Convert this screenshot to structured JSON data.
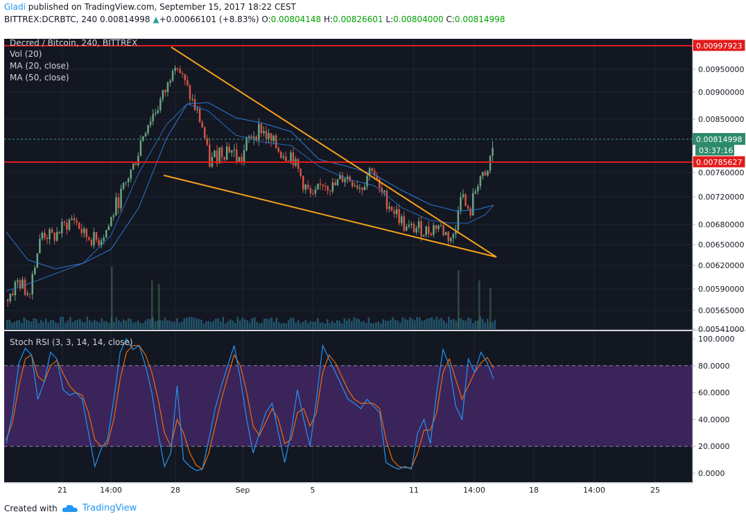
{
  "header": {
    "author": "Gladi",
    "published_text": "published on TradingView.com, September 15, 2017 18:22 CEST",
    "symbol_line": "BITTREX:DCRBTC, 240",
    "last_price": "0.00814998",
    "change": "+0.00066101 (+8.83%)",
    "o_label": "O:",
    "o": "0.00804148",
    "h_label": "H:",
    "h": "0.00826601",
    "l_label": "L:",
    "l": "0.00804000",
    "c_label": "C:",
    "c": "0.00814998"
  },
  "legend": {
    "title": "Decred / Bitcoin, 240, BITTREX",
    "vol": "Vol (20)",
    "ma20": "MA (20, close)",
    "ma50": "MA (50, close)",
    "stoch": "Stoch RSI (3, 3, 14, 14, close)"
  },
  "footer": {
    "created_with": "Created with",
    "brand": "TradingView"
  },
  "colors": {
    "background": "#131722",
    "up": "#6ba583",
    "down": "#d75442",
    "resistance": "#e31b1b",
    "trendline": "#f7a21b",
    "ma": "#2b7bd6",
    "stoch_k": "#2196f3",
    "stoch_d": "#ef6c00",
    "stoch_band": "#4a2a6e",
    "last_price_line": "#3aa37a"
  },
  "chart_data": {
    "type": "candlestick",
    "price_axis": {
      "ticks": [
        "0.00950000",
        "0.00900000",
        "0.00850000",
        "0.00760000",
        "0.00720000",
        "0.00680000",
        "0.00650000",
        "0.00620000",
        "0.00590000",
        "0.00565000",
        "0.00541000"
      ],
      "labels": [
        {
          "text": "0.00997923",
          "value": 0.00997923,
          "kind": "resistance"
        },
        {
          "text": "0.00814998",
          "value": 0.00814998,
          "kind": "last"
        },
        {
          "text": "03:37:16",
          "value": 0.00798,
          "kind": "timer"
        },
        {
          "text": "0.00785627",
          "value": 0.00785627,
          "kind": "resistance"
        }
      ],
      "partial_tick": "0."
    },
    "time_axis": [
      "21",
      "14:00",
      "28",
      "Sep",
      "5",
      "11",
      "14:00",
      "18",
      "14:00",
      "25"
    ],
    "horizontal_lines": [
      0.00997923,
      0.00785627
    ],
    "trendlines": [
      {
        "from": [
          "Aug 27",
          0.00993
        ],
        "to": [
          "Sep 14",
          0.0063
        ]
      },
      {
        "from": [
          "Aug 26",
          0.00752
        ],
        "to": [
          "Sep 14",
          0.0063
        ]
      }
    ],
    "stoch_rsi": {
      "ticks": [
        "100.0000",
        "80.0000",
        "60.0000",
        "40.0000",
        "20.0000",
        "0.0000"
      ],
      "bands": [
        80,
        20
      ],
      "k": [
        22,
        45,
        82,
        93,
        88,
        55,
        68,
        90,
        85,
        62,
        58,
        60,
        55,
        30,
        5,
        18,
        25,
        55,
        90,
        100,
        92,
        95,
        80,
        60,
        30,
        5,
        15,
        65,
        10,
        5,
        2,
        3,
        25,
        48,
        65,
        80,
        95,
        70,
        40,
        15,
        30,
        45,
        52,
        30,
        8,
        30,
        62,
        40,
        20,
        55,
        95,
        85,
        75,
        65,
        55,
        52,
        48,
        55,
        50,
        45,
        8,
        5,
        3,
        5,
        3,
        30,
        40,
        22,
        60,
        92,
        80,
        50,
        40,
        85,
        75,
        90,
        82,
        70
      ],
      "d": [
        25,
        38,
        65,
        85,
        88,
        72,
        68,
        80,
        84,
        74,
        65,
        60,
        58,
        45,
        25,
        20,
        22,
        40,
        70,
        90,
        95,
        95,
        88,
        75,
        55,
        30,
        20,
        40,
        30,
        15,
        6,
        3,
        15,
        35,
        55,
        72,
        88,
        80,
        60,
        35,
        28,
        38,
        48,
        40,
        22,
        25,
        45,
        48,
        35,
        45,
        75,
        88,
        82,
        72,
        62,
        55,
        52,
        52,
        52,
        48,
        25,
        10,
        5,
        4,
        4,
        15,
        32,
        32,
        45,
        75,
        85,
        70,
        55,
        65,
        75,
        82,
        86,
        78
      ]
    }
  }
}
